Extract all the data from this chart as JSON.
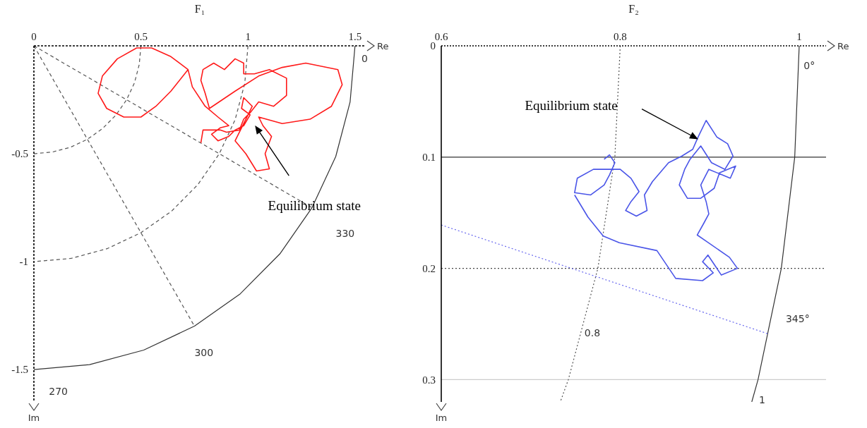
{
  "chart_data": [
    {
      "type": "line",
      "title": "F₁",
      "xlabel": "Re",
      "ylabel": "Im",
      "xlim": [
        0,
        1.55
      ],
      "xticks": [
        0,
        0.5,
        1,
        1.5
      ],
      "ylim": [
        -1.65,
        0
      ],
      "yticks": [
        -0.5,
        -1,
        -1.5
      ],
      "marker": "none",
      "series": [
        {
          "color": "#555555",
          "line_style": "dashed",
          "x": [
            0.5,
            0.492,
            0.47,
            0.433,
            0.383,
            0.321,
            0.25,
            0.171,
            0.087,
            0
          ],
          "values": [
            0,
            -0.087,
            -0.171,
            -0.25,
            -0.321,
            -0.383,
            -0.433,
            -0.47,
            -0.492,
            -0.5
          ]
        },
        {
          "color": "#555555",
          "line_style": "dashed",
          "x": [
            1,
            0.985,
            0.94,
            0.866,
            0.766,
            0.643,
            0.5,
            0.342,
            0.174,
            0
          ],
          "values": [
            0,
            -0.174,
            -0.342,
            -0.5,
            -0.643,
            -0.766,
            -0.866,
            -0.94,
            -0.985,
            -1
          ]
        },
        {
          "color": "#333333",
          "line_style": "solid",
          "x": [
            1.5,
            1.477,
            1.41,
            1.299,
            1.149,
            0.964,
            0.75,
            0.513,
            0.26,
            0
          ],
          "values": [
            0,
            -0.26,
            -0.513,
            -0.75,
            -0.964,
            -1.149,
            -1.299,
            -1.41,
            -1.477,
            -1.5
          ]
        },
        {
          "color": "#555555",
          "line_style": "dashed",
          "x": [
            0,
            1.299
          ],
          "values": [
            0,
            -0.75
          ]
        },
        {
          "color": "#555555",
          "line_style": "dashed",
          "x": [
            0,
            0.75
          ],
          "values": [
            0,
            -1.299
          ]
        },
        {
          "color": "#ff1a1a",
          "line_style": "solid",
          "x": [
            0.72,
            0.64,
            0.55,
            0.48,
            0.39,
            0.32,
            0.3,
            0.34,
            0.42,
            0.5,
            0.57,
            0.64,
            0.72,
            0.74,
            0.8,
            0.86,
            0.91,
            0.87,
            0.83,
            0.86,
            0.91,
            0.94,
            0.98,
            1.01,
            0.97,
            0.98,
            1.02,
            0.99,
            0.94,
            0.99,
            1.04,
            1.1,
            1.08,
            1.11,
            1.07,
            1.05,
            1.16,
            1.29,
            1.39,
            1.44,
            1.42,
            1.27,
            1.16,
            1.05,
            0.94,
            0.82,
            0.8,
            0.78,
            0.79,
            0.84,
            0.89,
            0.94,
            0.98,
            0.98,
            1.03,
            1.1,
            1.18,
            1.18,
            1.12,
            1.05,
            1.01,
            0.98,
            0.96,
            0.9,
            0.87,
            0.79,
            0.78
          ],
          "values": [
            -0.11,
            -0.05,
            -0.01,
            -0.01,
            -0.06,
            -0.14,
            -0.22,
            -0.29,
            -0.33,
            -0.33,
            -0.28,
            -0.21,
            -0.11,
            -0.19,
            -0.28,
            -0.33,
            -0.37,
            -0.38,
            -0.41,
            -0.44,
            -0.42,
            -0.39,
            -0.37,
            -0.32,
            -0.29,
            -0.24,
            -0.28,
            -0.34,
            -0.44,
            -0.5,
            -0.58,
            -0.57,
            -0.5,
            -0.42,
            -0.37,
            -0.33,
            -0.36,
            -0.34,
            -0.28,
            -0.18,
            -0.11,
            -0.08,
            -0.1,
            -0.14,
            -0.21,
            -0.29,
            -0.22,
            -0.16,
            -0.11,
            -0.08,
            -0.11,
            -0.06,
            -0.08,
            -0.13,
            -0.13,
            -0.11,
            -0.15,
            -0.23,
            -0.28,
            -0.26,
            -0.31,
            -0.34,
            -0.39,
            -0.4,
            -0.39,
            -0.39,
            -0.45
          ]
        }
      ],
      "annotations": [
        "Equilibrium state",
        "0",
        "330",
        "300",
        "270"
      ]
    },
    {
      "type": "line",
      "title": "F₂",
      "xlabel": "Re",
      "ylabel": "Im",
      "xlim": [
        0.6,
        1.03
      ],
      "xticks": [
        0.6,
        0.8,
        1
      ],
      "ylim": [
        0.32,
        0
      ],
      "yticks": [
        0,
        0.1,
        0.2,
        0.3
      ],
      "marker": "none",
      "series": [
        {
          "color": "#555555",
          "line_style": "dotted",
          "x": [
            0.8,
            0.794,
            0.775,
            0.742,
            0.733
          ],
          "values": [
            0,
            0.1,
            0.2,
            0.3,
            0.32
          ]
        },
        {
          "color": "#333333",
          "line_style": "solid",
          "x": [
            1,
            0.995,
            0.98,
            0.954,
            0.947
          ],
          "values": [
            0,
            0.1,
            0.2,
            0.3,
            0.32
          ]
        },
        {
          "color": "#6666ee",
          "line_style": "dotted",
          "x": [
            0.6,
            0.966
          ],
          "values": [
            0.161,
            0.259
          ]
        },
        {
          "color": "#4a55e8",
          "line_style": "solid",
          "x": [
            0.782,
            0.788,
            0.794,
            0.788,
            0.782,
            0.767,
            0.749,
            0.752,
            0.77,
            0.8,
            0.812,
            0.821,
            0.812,
            0.806,
            0.818,
            0.83,
            0.827,
            0.836,
            0.854,
            0.869,
            0.881,
            0.887,
            0.896,
            0.908,
            0.92,
            0.926,
            0.917,
            0.902,
            0.89,
            0.878,
            0.872,
            0.866,
            0.875,
            0.89,
            0.905,
            0.911,
            0.929,
            0.923,
            0.899,
            0.89,
            0.896,
            0.899,
            0.893,
            0.886,
            0.895,
            0.922,
            0.931,
            0.913,
            0.898,
            0.892,
            0.904,
            0.892,
            0.862,
            0.841,
            0.799,
            0.781,
            0.764,
            0.749
          ],
          "values": [
            0.102,
            0.098,
            0.105,
            0.116,
            0.125,
            0.134,
            0.132,
            0.119,
            0.111,
            0.111,
            0.119,
            0.131,
            0.14,
            0.148,
            0.153,
            0.148,
            0.134,
            0.122,
            0.105,
            0.099,
            0.093,
            0.082,
            0.067,
            0.082,
            0.088,
            0.099,
            0.111,
            0.105,
            0.09,
            0.102,
            0.111,
            0.125,
            0.137,
            0.137,
            0.128,
            0.114,
            0.108,
            0.119,
            0.111,
            0.125,
            0.14,
            0.151,
            0.16,
            0.17,
            0.175,
            0.19,
            0.2,
            0.206,
            0.188,
            0.194,
            0.204,
            0.211,
            0.209,
            0.184,
            0.177,
            0.171,
            0.154,
            0.134
          ]
        }
      ],
      "ref_lines": [
        {
          "axis": "y",
          "value": 0.1,
          "color": "#333333",
          "line_style": "solid"
        },
        {
          "axis": "y",
          "value": 0.2,
          "color": "#444444",
          "line_style": "dotted"
        },
        {
          "axis": "y",
          "value": 0.3,
          "color": "#cccccc",
          "line_style": "solid"
        }
      ],
      "annotations": [
        "Equilibrium state",
        "0°",
        "345°",
        "0.8",
        "1"
      ]
    }
  ]
}
